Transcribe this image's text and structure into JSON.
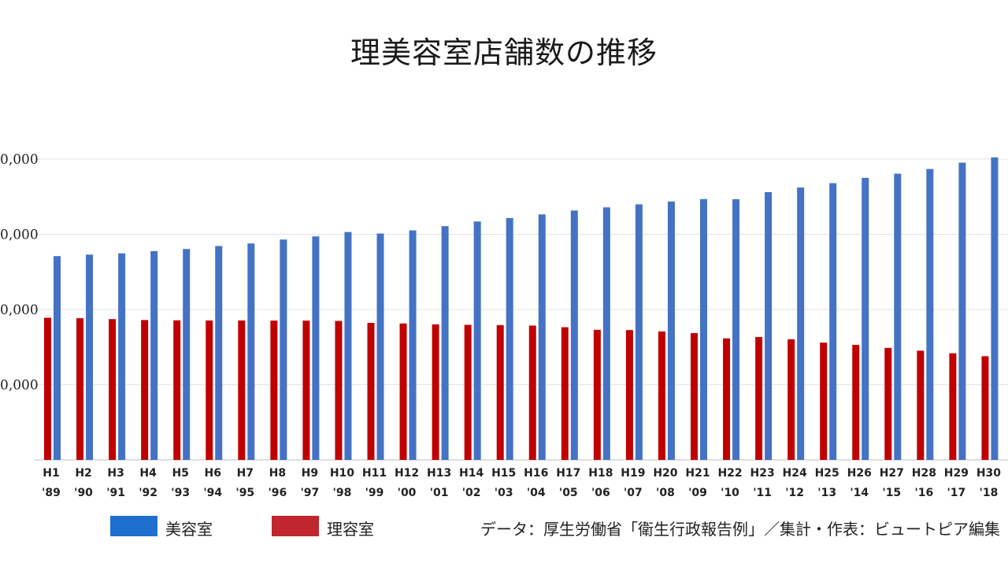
{
  "chart_data": {
    "type": "bar",
    "title": "理美容室店舗数の推移",
    "categories": [
      "H1",
      "H2",
      "H3",
      "H4",
      "H5",
      "H6",
      "H7",
      "H8",
      "H9",
      "H10",
      "H11",
      "H12",
      "H13",
      "H14",
      "H15",
      "H16",
      "H17",
      "H18",
      "H19",
      "H20",
      "H21",
      "H22",
      "H23",
      "H24",
      "H25",
      "H26",
      "H27",
      "H28",
      "H29",
      "H30"
    ],
    "categories_year": [
      "'89",
      "'90",
      "'91",
      "'92",
      "'93",
      "'94",
      "'95",
      "'96",
      "'97",
      "'98",
      "'99",
      "'00",
      "'01",
      "'02",
      "'03",
      "'04",
      "'05",
      "'06",
      "'07",
      "'08",
      "'09",
      "'10",
      "'11",
      "'12",
      "'13",
      "'14",
      "'15",
      "'16",
      "'17",
      "'18"
    ],
    "series": [
      {
        "name": "美容室",
        "color": "#4472c4",
        "values": [
          185500,
          186500,
          187300,
          188800,
          190200,
          192200,
          193900,
          196500,
          198600,
          201500,
          200500,
          202600,
          205400,
          208500,
          210800,
          213200,
          215800,
          217900,
          219900,
          221800,
          223400,
          223300,
          228000,
          231100,
          234000,
          237500,
          240300,
          243400,
          247600,
          251100
        ]
      },
      {
        "name": "理容室",
        "color": "#c00000",
        "values": [
          144500,
          144200,
          143600,
          143000,
          142800,
          142700,
          142700,
          142600,
          142600,
          142400,
          141100,
          140700,
          140100,
          139800,
          139600,
          139300,
          138200,
          136500,
          136300,
          135400,
          134300,
          130800,
          131700,
          130200,
          128000,
          126500,
          124500,
          122600,
          120900,
          118900
        ]
      }
    ],
    "ylim": [
      50000,
      260000
    ],
    "yticks": [
      100000,
      150000,
      200000,
      250000
    ],
    "ytick_labels": [
      "0,000",
      "0,000",
      "0,000",
      "0,000"
    ],
    "xlabel": "",
    "ylabel": "",
    "grid": true,
    "legend_position": "bottom-left"
  },
  "legend": [
    {
      "label": "美容室",
      "color": "#1f6fce"
    },
    {
      "label": "理容室",
      "color": "#c0262d"
    }
  ],
  "source_note": "データ：厚生労働省「衛生行政報告例」／集計・作表：ビュートピア編集"
}
